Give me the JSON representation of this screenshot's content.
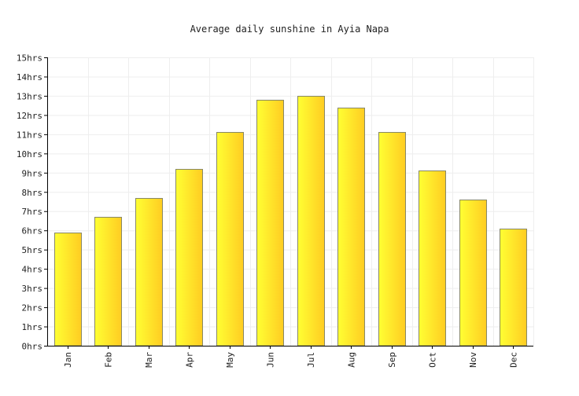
{
  "chart_data": {
    "type": "bar",
    "title": "Average daily sunshine in Ayia Napa",
    "categories": [
      "Jan",
      "Feb",
      "Mar",
      "Apr",
      "May",
      "Jun",
      "Jul",
      "Aug",
      "Sep",
      "Oct",
      "Nov",
      "Dec"
    ],
    "values": [
      5.9,
      6.7,
      7.7,
      9.2,
      11.1,
      12.8,
      13.0,
      12.4,
      11.1,
      9.1,
      7.6,
      6.1
    ],
    "y_unit": "hrs",
    "ylim": [
      0,
      15
    ],
    "y_ticks": [
      "0hrs",
      "1hrs",
      "2hrs",
      "3hrs",
      "4hrs",
      "5hrs",
      "6hrs",
      "7hrs",
      "8hrs",
      "9hrs",
      "10hrs",
      "11hrs",
      "12hrs",
      "13hrs",
      "14hrs",
      "15hrs"
    ],
    "grid": true,
    "colors": {
      "bar_light": "#ffff33",
      "bar_dark": "#ffcc22",
      "bar_stroke": "#888866",
      "grid": "#eeeeee",
      "axis": "#000000"
    }
  }
}
